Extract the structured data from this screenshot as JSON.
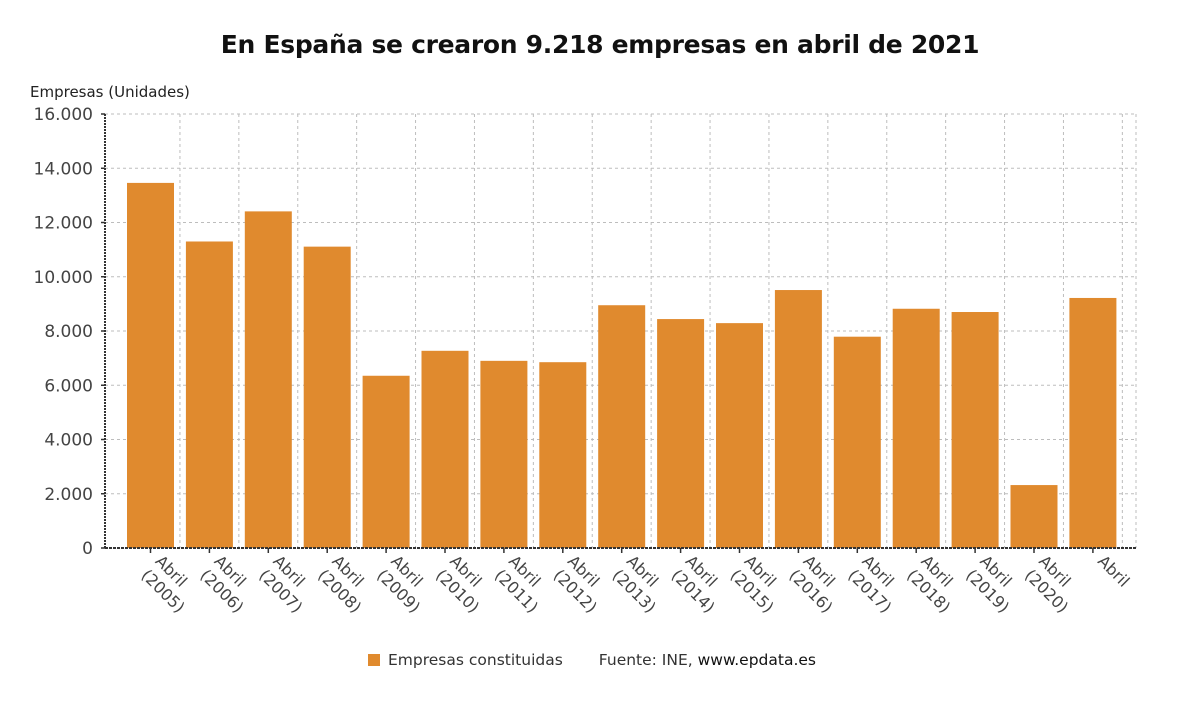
{
  "chart_data": {
    "type": "bar",
    "title": "En España se crearon 9.218 empresas en abril de 2021",
    "ylabel": "Empresas (Unidades)",
    "xlabel": "",
    "ylim": [
      0,
      16000
    ],
    "yticks": [
      0,
      2000,
      4000,
      6000,
      8000,
      10000,
      12000,
      14000,
      16000
    ],
    "ytick_labels": [
      "0",
      "2.000",
      "4.000",
      "6.000",
      "8.000",
      "10.000",
      "12.000",
      "14.000",
      "16.000"
    ],
    "categories": [
      "Abril (2005)",
      "Abril (2006)",
      "Abril (2007)",
      "Abril (2008)",
      "Abril (2009)",
      "Abril (2010)",
      "Abril (2011)",
      "Abril (2012)",
      "Abril (2013)",
      "Abril (2014)",
      "Abril (2015)",
      "Abril (2016)",
      "Abril (2017)",
      "Abril (2018)",
      "Abril (2019)",
      "Abril (2020)",
      "Abril"
    ],
    "category_lines": [
      [
        "Abril",
        "(2005)"
      ],
      [
        "Abril",
        "(2006)"
      ],
      [
        "Abril",
        "(2007)"
      ],
      [
        "Abril",
        "(2008)"
      ],
      [
        "Abril",
        "(2009)"
      ],
      [
        "Abril",
        "(2010)"
      ],
      [
        "Abril",
        "(2011)"
      ],
      [
        "Abril",
        "(2012)"
      ],
      [
        "Abril",
        "(2013)"
      ],
      [
        "Abril",
        "(2014)"
      ],
      [
        "Abril",
        "(2015)"
      ],
      [
        "Abril",
        "(2016)"
      ],
      [
        "Abril",
        "(2017)"
      ],
      [
        "Abril",
        "(2018)"
      ],
      [
        "Abril",
        "(2019)"
      ],
      [
        "Abril",
        "(2020)"
      ],
      [
        "Abril"
      ]
    ],
    "series": [
      {
        "name": "Empresas constituidas",
        "color": "#e08a2e",
        "values": [
          13460,
          11300,
          12410,
          11110,
          6350,
          7270,
          6900,
          6850,
          8950,
          8440,
          8290,
          9510,
          7790,
          8820,
          8700,
          2320,
          9218
        ]
      }
    ],
    "grid": true,
    "legend": "bottom-center"
  },
  "legend": {
    "series_label": "Empresas constituidas",
    "source_prefix": "Fuente: INE, ",
    "source_site": "www.epdata.es"
  }
}
